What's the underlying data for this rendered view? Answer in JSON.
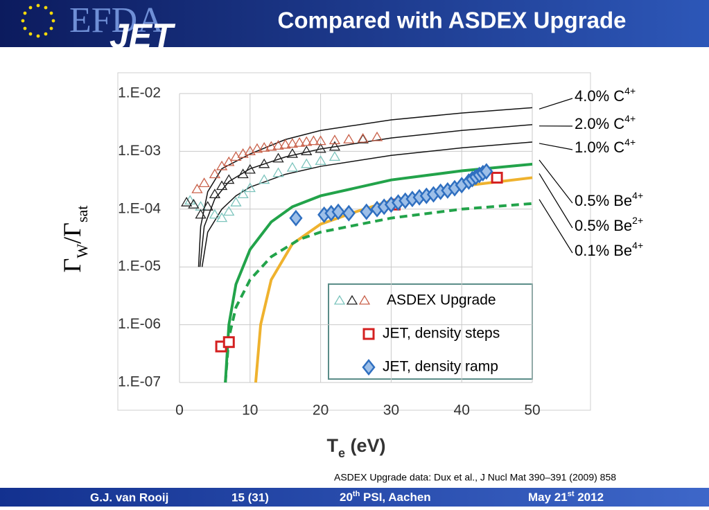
{
  "chart_data": {
    "type": "scatter",
    "xlabel": [
      "T",
      "e",
      " (eV)"
    ],
    "ylabel": [
      "Γ",
      "W",
      "/Γ",
      "sat"
    ],
    "xlim": [
      0,
      50
    ],
    "xticks": [
      0,
      10,
      20,
      30,
      40,
      50
    ],
    "ylim": [
      1e-07,
      0.01
    ],
    "log_y": true,
    "yticks": [
      {
        "value": 1e-07,
        "label": "1.E-07"
      },
      {
        "value": 1e-06,
        "label": "1.E-06"
      },
      {
        "value": 1e-05,
        "label": "1.E-05"
      },
      {
        "value": 0.0001,
        "label": "1.E-04"
      },
      {
        "value": 0.001,
        "label": "1.E-03"
      },
      {
        "value": 0.01,
        "label": "1.E-02"
      }
    ],
    "grid": true,
    "legend_position": "lower right",
    "series": [
      {
        "name": "ASDEX Upgrade",
        "marker": "triangle",
        "sets": [
          {
            "color": "#7cc4bd",
            "x": [
              1.5,
              3,
              5,
              6,
              7,
              8,
              9,
              10,
              12,
              14,
              16,
              18,
              20,
              22
            ],
            "values": [
              0.00014,
              0.00011,
              8e-05,
              7e-05,
              9e-05,
              0.00013,
              0.00018,
              0.00023,
              0.00032,
              0.00042,
              0.00052,
              0.0006,
              0.00068,
              0.0008
            ]
          },
          {
            "color": "#222222",
            "x": [
              1,
              2,
              3,
              4,
              5,
              6,
              7,
              9,
              10,
              12,
              14,
              16,
              18,
              20,
              22,
              26
            ],
            "values": [
              0.00013,
              0.00012,
              8e-05,
              0.00011,
              0.00018,
              0.00025,
              0.00032,
              0.0004,
              0.00048,
              0.0006,
              0.00075,
              0.0009,
              0.001,
              0.0011,
              0.0012,
              0.0016
            ]
          },
          {
            "color": "#c9614a",
            "x": [
              2.5,
              3.5,
              5,
              6,
              7,
              8,
              9,
              10,
              11,
              12,
              13,
              14,
              15,
              16,
              17,
              18,
              19,
              20,
              22,
              24,
              26,
              28
            ],
            "values": [
              0.00022,
              0.00028,
              0.0004,
              0.00055,
              0.00065,
              0.0008,
              0.0009,
              0.001,
              0.0011,
              0.00115,
              0.0012,
              0.00125,
              0.0013,
              0.00135,
              0.0014,
              0.00145,
              0.0015,
              0.0015,
              0.00155,
              0.0016,
              0.00165,
              0.00175
            ]
          }
        ]
      },
      {
        "name": "JET, density steps",
        "marker": "square",
        "color": "#d42020",
        "x": [
          5.9,
          7,
          30.5,
          45
        ],
        "values": [
          4.2e-07,
          5e-07,
          0.00012,
          0.00035
        ]
      },
      {
        "name": "JET, density ramp",
        "marker": "diamond",
        "color": "#2f6fc0",
        "x": [
          16.5,
          20.5,
          21.5,
          22.5,
          24,
          26.5,
          28,
          29,
          30,
          31,
          32,
          33,
          34,
          35,
          36,
          37,
          38,
          39,
          40,
          41,
          41.5,
          42,
          42.5,
          43,
          43.5
        ],
        "values": [
          7e-05,
          8e-05,
          8.5e-05,
          9e-05,
          8.5e-05,
          9e-05,
          0.0001,
          0.00011,
          0.00012,
          0.00013,
          0.00014,
          0.00015,
          0.00016,
          0.00017,
          0.00018,
          0.0002,
          0.00021,
          0.00023,
          0.00026,
          0.0003,
          0.00033,
          0.00036,
          0.00039,
          0.00042,
          0.00045
        ]
      },
      {
        "name": [
          "4.0% C",
          "4+"
        ],
        "color": "#111111",
        "x": [
          2.7,
          3,
          4,
          6,
          10,
          15,
          20,
          30,
          40,
          50
        ],
        "values": [
          1e-05,
          5e-05,
          0.0002,
          0.0005,
          0.0009,
          0.0016,
          0.0023,
          0.0035,
          0.0046,
          0.0057
        ]
      },
      {
        "name": [
          "2.0% C",
          "4+"
        ],
        "color": "#111111",
        "x": [
          2.9,
          3.5,
          5,
          7,
          10,
          15,
          20,
          30,
          40,
          50
        ],
        "values": [
          1e-05,
          5e-05,
          0.00015,
          0.0003,
          0.0005,
          0.0008,
          0.0011,
          0.0017,
          0.0023,
          0.0029
        ]
      },
      {
        "name": [
          "1.0% C",
          "4+"
        ],
        "color": "#111111",
        "x": [
          3.2,
          4,
          6,
          8,
          10,
          15,
          20,
          30,
          40,
          50
        ],
        "values": [
          1e-05,
          4e-05,
          0.0001,
          0.00017,
          0.00024,
          0.0004,
          0.00055,
          0.00085,
          0.00115,
          0.00145
        ]
      },
      {
        "name": [
          "0.5% Be",
          "4+"
        ],
        "color": "#22a34a",
        "x": [
          6.5,
          7,
          8,
          10,
          13,
          16,
          20,
          30,
          40,
          50
        ],
        "values": [
          1e-07,
          1e-06,
          5e-06,
          2e-05,
          6e-05,
          0.00011,
          0.00017,
          0.00032,
          0.00046,
          0.0006
        ]
      },
      {
        "name": [
          "0.5% Be",
          "2+"
        ],
        "color": "#efb22e",
        "x": [
          10.8,
          11.5,
          13,
          16,
          20,
          25,
          30,
          40,
          50
        ],
        "values": [
          1e-07,
          1e-06,
          6e-06,
          2.5e-05,
          5.5e-05,
          9e-05,
          0.00014,
          0.00025,
          0.00035
        ]
      },
      {
        "name": [
          "0.1% Be",
          "4+"
        ],
        "color": "#22a34a",
        "dashed": true,
        "x": [
          6.5,
          7,
          8,
          10,
          13,
          17,
          20,
          30,
          40,
          50
        ],
        "values": [
          1e-07,
          6e-07,
          2e-06,
          6e-06,
          1.5e-05,
          3e-05,
          4e-05,
          7e-05,
          0.0001,
          0.000125
        ]
      }
    ]
  },
  "slide": {
    "title": "Compared with ASDEX Upgrade",
    "logo": [
      "EFDA",
      "JET"
    ],
    "citation": "ASDEX Upgrade data: Dux et al., J Nucl Mat 390–391 (2009) 858",
    "footer": {
      "author": "G.J. van Rooij",
      "page": "15 (31)",
      "event": [
        "20",
        "th",
        " PSI, Aachen"
      ],
      "date": [
        "May 21",
        "st",
        " 2012"
      ]
    }
  }
}
